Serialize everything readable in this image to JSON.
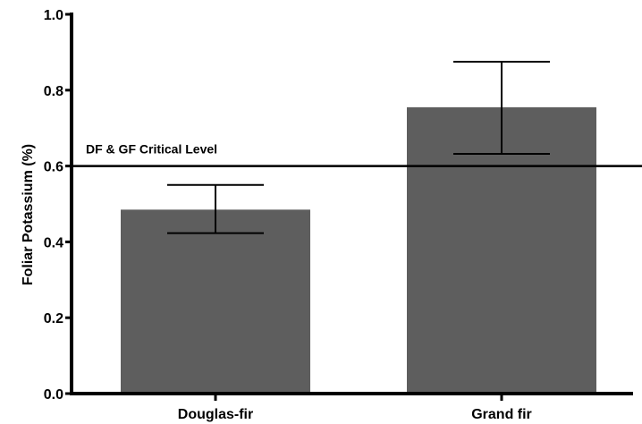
{
  "chart_data": {
    "type": "bar",
    "title": "",
    "xlabel": "",
    "ylabel": "Foliar Potassium (%)",
    "categories": [
      "Douglas-fir",
      "Grand fir"
    ],
    "values": [
      0.485,
      0.755
    ],
    "error_low": [
      0.423,
      0.632
    ],
    "error_high": [
      0.55,
      0.875
    ],
    "ylim": [
      0.0,
      1.0
    ],
    "yticks": [
      0.0,
      0.2,
      0.4,
      0.6,
      0.8,
      1.0
    ],
    "ytick_labels": [
      "0.0",
      "0.2",
      "0.4",
      "0.6",
      "0.8",
      "1.0"
    ],
    "reference_line": {
      "value": 0.6,
      "label": "DF & GF Critical Level"
    },
    "grid": false,
    "legend": "none",
    "bar_color": "#5e5e5e",
    "axis_color": "#000000"
  }
}
